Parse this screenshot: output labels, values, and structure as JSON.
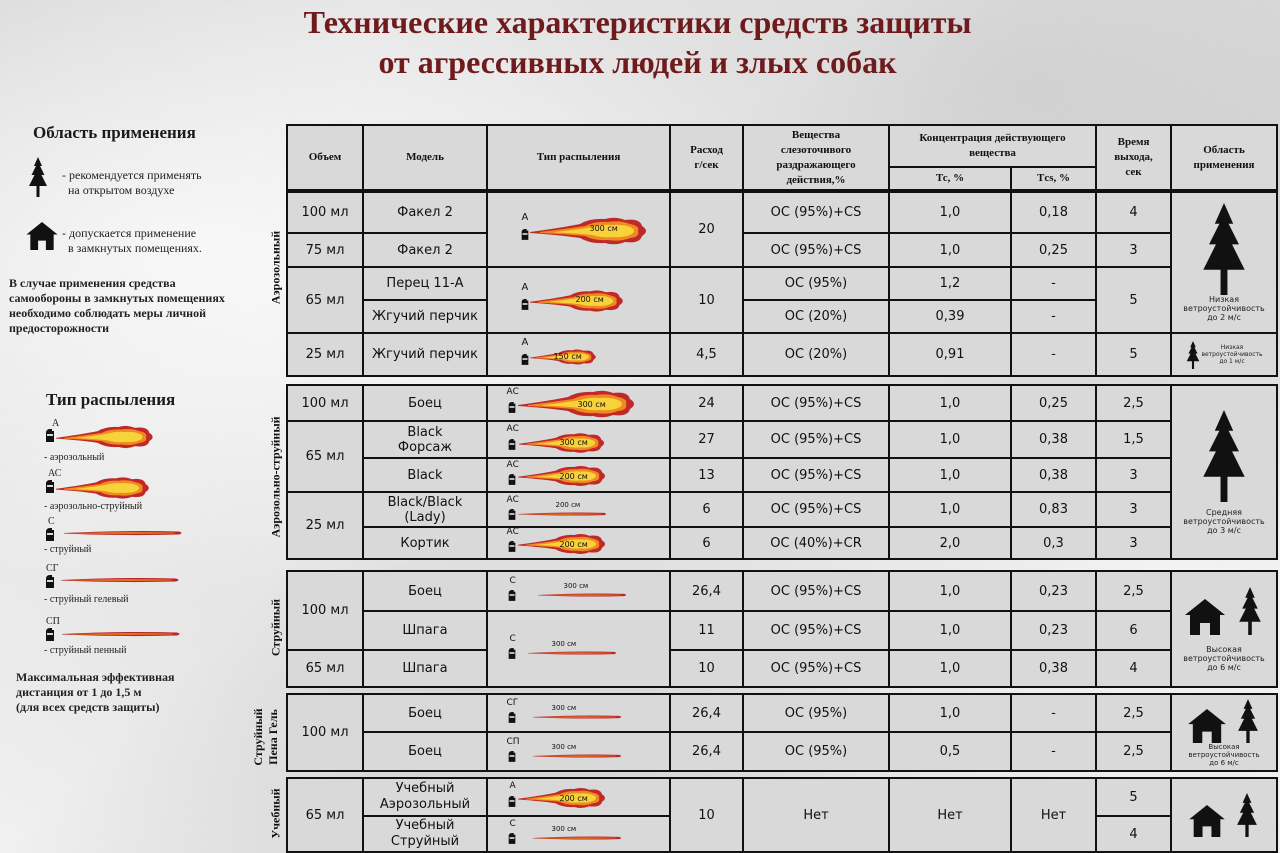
{
  "title": {
    "line1": "Технические характеристики средств защиты",
    "line2": "от агрессивных людей и злых собак"
  },
  "legend_area": {
    "heading": "Область применения",
    "tree_text_1": "- рекомендуется применять",
    "tree_text_2": "на открытом воздухе",
    "house_text_1": "- допускается применение",
    "house_text_2": "в замкнутых помещениях.",
    "warning_1": "В случае применения средства",
    "warning_2": "самообороны в замкнутых помещениях",
    "warning_3": "необходимо соблюдать меры личной",
    "warning_4": "предосторожности"
  },
  "legend_spray": {
    "heading": "Тип распыления",
    "items": [
      {
        "code": "А",
        "label": "- аэрозольный"
      },
      {
        "code": "АС",
        "label": "- аэрозольно-струйный"
      },
      {
        "code": "С",
        "label": "- струйный"
      },
      {
        "code": "СГ",
        "label": "- струйный гелевый"
      },
      {
        "code": "СП",
        "label": "- струйный пенный"
      }
    ],
    "note_1": "Максимальная эффективная",
    "note_2": "дистанция от 1 до 1,5 м",
    "note_3": "(для всех средств защиты)"
  },
  "headers": {
    "volume": "Объем",
    "model": "Модель",
    "spray_type": "Тип распыления",
    "rate_1": "Расход",
    "rate_2": "г/сек",
    "subst_1": "Вещества",
    "subst_2": "слезоточивого",
    "subst_3": "раздражающего",
    "subst_4": "действия,%",
    "conc_1": "Концентрация действующего",
    "conc_2": "вещества",
    "tc": "Тс, %",
    "tcs": "Тcs, %",
    "time_1": "Время",
    "time_2": "выхода,",
    "time_3": "сек",
    "area_1": "Область",
    "area_2": "применения"
  },
  "groups": {
    "aerosol": "Аэрозольный",
    "aerojet": "Аэрозольно-струйный",
    "jet": "Струйный",
    "gel_1": "Струйный",
    "gel_2": "Пена  Гель",
    "training": "Учебный"
  },
  "rows": {
    "r1": {
      "volume": "100 мл",
      "model": "Факел 2",
      "subst": "ОС (95%)+CS",
      "tc": "1,0",
      "tcs": "0,18",
      "time": "4"
    },
    "r2": {
      "volume": "75 мл",
      "model": "Факел 2",
      "subst": "ОС (95%)+CS",
      "tc": "1,0",
      "tcs": "0,25",
      "time": "3"
    },
    "r12_rate": "20",
    "r3": {
      "model": "Перец 11-А",
      "subst": "ОС (95%)",
      "tc": "1,2",
      "tcs": "-"
    },
    "r4": {
      "model": "Жгучий перчик",
      "subst": "ОС (20%)",
      "tc": "0,39",
      "tcs": "-"
    },
    "r34": {
      "volume": "65 мл",
      "rate": "10",
      "time": "5"
    },
    "r5": {
      "volume": "25 мл",
      "model": "Жгучий перчик",
      "rate": "4,5",
      "subst": "ОС (20%)",
      "tc": "0,91",
      "tcs": "-",
      "time": "5"
    },
    "r6": {
      "volume": "100 мл",
      "model": "Боец",
      "rate": "24",
      "subst": "ОС (95%)+CS",
      "tc": "1,0",
      "tcs": "0,25",
      "time": "2,5"
    },
    "r7": {
      "model_1": "Black",
      "model_2": "Форсаж",
      "rate": "27",
      "subst": "ОС (95%)+CS",
      "tc": "1,0",
      "tcs": "0,38",
      "time": "1,5"
    },
    "r8": {
      "model": "Black",
      "rate": "13",
      "subst": "ОС (95%)+CS",
      "tc": "1,0",
      "tcs": "0,38",
      "time": "3"
    },
    "r78_volume": "65 мл",
    "r9": {
      "model_1": "Black/Black",
      "model_2": "(Lady)",
      "rate": "6",
      "subst": "ОС (95%)+CS",
      "tc": "1,0",
      "tcs": "0,83",
      "time": "3"
    },
    "r10": {
      "model": "Кортик",
      "rate": "6",
      "subst": "ОС (40%)+CR",
      "tc": "2,0",
      "tcs": "0,3",
      "time": "3"
    },
    "r910_volume": "25 мл",
    "r11": {
      "model": "Боец",
      "rate": "26,4",
      "subst": "ОС (95%)+CS",
      "tc": "1,0",
      "tcs": "0,23",
      "time": "2,5"
    },
    "r12": {
      "model": "Шпага",
      "rate": "11",
      "subst": "ОС (95%)+CS",
      "tc": "1,0",
      "tcs": "0,23",
      "time": "6"
    },
    "r1112_volume": "100 мл",
    "r13": {
      "volume": "65 мл",
      "model": "Шпага",
      "rate": "10",
      "subst": "ОС (95%)+CS",
      "tc": "1,0",
      "tcs": "0,38",
      "time": "4"
    },
    "r14": {
      "model": "Боец",
      "rate": "26,4",
      "subst": "ОС (95%)",
      "tc": "1,0",
      "tcs": "-",
      "time": "2,5"
    },
    "r15": {
      "model": "Боец",
      "rate": "26,4",
      "subst": "ОС (95%)",
      "tc": "0,5",
      "tcs": "-",
      "time": "2,5"
    },
    "r1415_volume": "100 мл",
    "r16": {
      "model_1": "Учебный",
      "model_2": "Аэрозольный",
      "time": "5"
    },
    "r17": {
      "model_1": "Учебный",
      "model_2": "Струйный",
      "time": "4"
    },
    "r1617": {
      "volume": "65 мл",
      "rate": "10",
      "subst": "Нет",
      "tc": "Нет",
      "tcs": "Нет"
    }
  },
  "spray_labels": {
    "s300": "300 см",
    "s200": "200 см",
    "s150": "150 см",
    "a": "А",
    "ac": "АС",
    "c": "С",
    "cg": "СГ",
    "cp": "СП"
  },
  "wind": {
    "low_1": "Низкая",
    "low_2": "ветроустойчивость",
    "low_3": "до 2 м/с",
    "low_small_1": "Низкая",
    "low_small_2": "ветроустойчивость",
    "low_small_3": "до 1 м/с",
    "mid_1": "Средняя",
    "mid_2": "ветроустойчивость",
    "mid_3": "до 3 м/с",
    "high_1": "Высокая",
    "high_2": "ветроустойчивость",
    "high_3": "до 6 м/с",
    "high_b_1": "Высокая",
    "high_b_2": "ветроустойчивость",
    "high_b_3": "до 6 м/с"
  },
  "colors": {
    "title": "#6f1b1e",
    "cell": "#d9d9d9",
    "grid": "#111111",
    "flame_red": "#c0292a",
    "flame_yellow": "#f7d23a",
    "flame_orange": "#f08a1f"
  }
}
